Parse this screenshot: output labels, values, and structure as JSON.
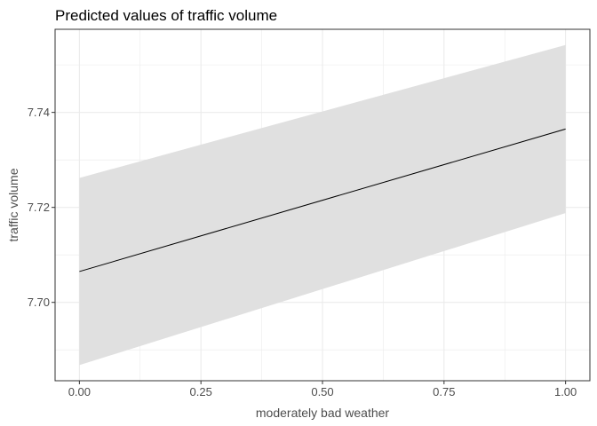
{
  "chart_data": {
    "type": "line",
    "title": "Predicted values of traffic volume",
    "xlabel": "moderately bad weather",
    "ylabel": "traffic volume",
    "xlim": [
      -0.05,
      1.05
    ],
    "ylim": [
      7.6835,
      7.7575
    ],
    "x_ticks": [
      0.0,
      0.25,
      0.5,
      0.75,
      1.0
    ],
    "x_tick_labels": [
      "0.00",
      "0.25",
      "0.50",
      "0.75",
      "1.00"
    ],
    "y_ticks": [
      7.7,
      7.72,
      7.74
    ],
    "y_tick_labels": [
      "7.70",
      "7.72",
      "7.74"
    ],
    "grid": true,
    "series": [
      {
        "x": [
          0.0,
          1.0
        ],
        "y": [
          7.7065,
          7.7365
        ],
        "lower": [
          7.6868,
          7.7188
        ],
        "upper": [
          7.7262,
          7.7542
        ]
      }
    ],
    "colors": {
      "line": "#000000",
      "ribbon": "#e0e0e0",
      "grid": "#ebebeb",
      "panel_border": "#333333"
    }
  }
}
